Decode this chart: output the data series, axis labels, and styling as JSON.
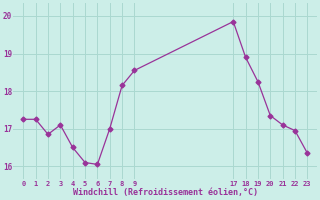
{
  "x": [
    0,
    1,
    2,
    3,
    4,
    5,
    6,
    7,
    8,
    9,
    17,
    18,
    19,
    20,
    21,
    22,
    23
  ],
  "y": [
    17.25,
    17.25,
    16.85,
    17.1,
    16.5,
    16.1,
    16.05,
    17.0,
    18.15,
    18.55,
    19.85,
    18.9,
    18.25,
    17.35,
    17.1,
    16.95,
    16.35
  ],
  "line_color": "#993399",
  "marker": "D",
  "marker_size": 2.5,
  "bg_color": "#cceee8",
  "grid_color": "#aad8d0",
  "xlabel": "Windchill (Refroidissement éolien,°C)",
  "xlabel_color": "#993399",
  "tick_color": "#993399",
  "ylim": [
    15.65,
    20.35
  ],
  "xlim": [
    -0.8,
    23.8
  ],
  "yticks": [
    16,
    17,
    18,
    19,
    20
  ],
  "ytick_labels": [
    "16",
    "17",
    "18",
    "19",
    "20"
  ],
  "xticks": [
    0,
    1,
    2,
    3,
    4,
    5,
    6,
    7,
    8,
    9,
    17,
    18,
    19,
    20,
    21,
    22,
    23
  ],
  "xtick_labels": [
    "0",
    "1",
    "2",
    "3",
    "4",
    "5",
    "6",
    "7",
    "8",
    "9",
    "17",
    "18",
    "19",
    "20",
    "21",
    "22",
    "23"
  ]
}
